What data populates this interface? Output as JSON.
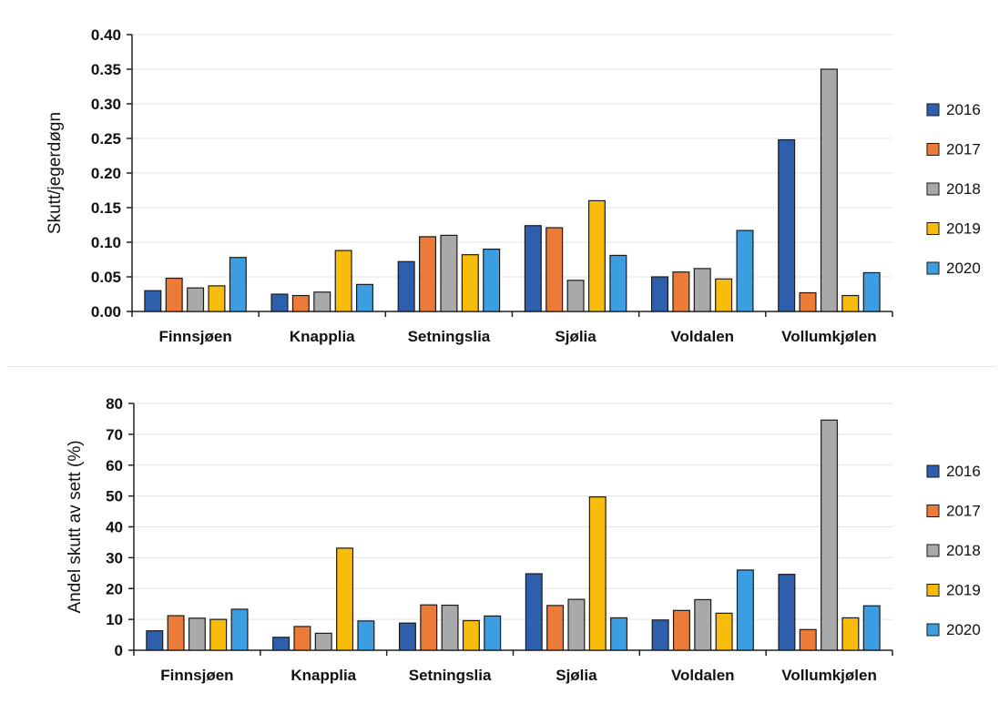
{
  "chart_data": [
    {
      "type": "bar",
      "title": "",
      "xlabel": "",
      "ylabel": "Skutt/jegerdøgn",
      "ylim": [
        0,
        0.4
      ],
      "yticks": [
        "0.00",
        "0.05",
        "0.10",
        "0.15",
        "0.20",
        "0.25",
        "0.30",
        "0.35",
        "0.40"
      ],
      "categories": [
        "Finnsjøen",
        "Knapplia",
        "Setningslia",
        "Sjølia",
        "Voldalen",
        "Vollumkjølen"
      ],
      "grid": true,
      "legend": "right",
      "series": [
        {
          "name": "2016",
          "color": "#2e5fad",
          "values": [
            0.03,
            0.025,
            0.072,
            0.124,
            0.05,
            0.248
          ]
        },
        {
          "name": "2017",
          "color": "#ec7b38",
          "values": [
            0.048,
            0.023,
            0.108,
            0.121,
            0.057,
            0.027
          ]
        },
        {
          "name": "2018",
          "color": "#a9a9a9",
          "values": [
            0.034,
            0.028,
            0.11,
            0.045,
            0.062,
            0.35
          ]
        },
        {
          "name": "2019",
          "color": "#f8bd0c",
          "values": [
            0.037,
            0.088,
            0.082,
            0.16,
            0.047,
            0.023
          ]
        },
        {
          "name": "2020",
          "color": "#3a9ee0",
          "values": [
            0.078,
            0.039,
            0.09,
            0.081,
            0.117,
            0.056
          ]
        }
      ]
    },
    {
      "type": "bar",
      "title": "",
      "xlabel": "",
      "ylabel": "Andel skutt av sett (%)",
      "ylim": [
        0,
        80
      ],
      "yticks": [
        "0",
        "10",
        "20",
        "30",
        "40",
        "50",
        "60",
        "70",
        "80"
      ],
      "categories": [
        "Finnsjøen",
        "Knapplia",
        "Setningslia",
        "Sjølia",
        "Voldalen",
        "Vollumkjølen"
      ],
      "grid": true,
      "legend": "right",
      "series": [
        {
          "name": "2016",
          "color": "#2e5fad",
          "values": [
            6.3,
            4.2,
            8.8,
            24.8,
            9.8,
            24.6
          ]
        },
        {
          "name": "2017",
          "color": "#ec7b38",
          "values": [
            11.2,
            7.7,
            14.7,
            14.5,
            12.9,
            6.7
          ]
        },
        {
          "name": "2018",
          "color": "#a9a9a9",
          "values": [
            10.4,
            5.5,
            14.6,
            16.5,
            16.4,
            74.6
          ]
        },
        {
          "name": "2019",
          "color": "#f8bd0c",
          "values": [
            10.0,
            33.1,
            9.6,
            49.7,
            12.0,
            10.5
          ]
        },
        {
          "name": "2020",
          "color": "#3a9ee0",
          "values": [
            13.3,
            9.5,
            11.1,
            10.5,
            26.0,
            14.4
          ]
        }
      ]
    }
  ]
}
